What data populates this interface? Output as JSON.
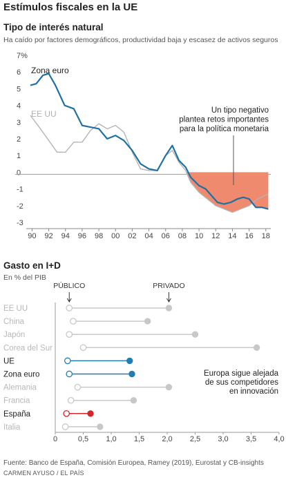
{
  "title": "Estímulos fiscales en la UE",
  "footer": {
    "source": "Fuente: Banco de España, Comisión Europea, Ramey (2019), Eurostat y CB-insights",
    "credit": "CARMEN AYUSO / EL PAÍS"
  },
  "colors": {
    "zona_euro": "#1f6fa3",
    "eeuu": "#b4b4b4",
    "negative_fill": "#ef8a6f",
    "ue_dot": "#1f7fb3",
    "espana_dot": "#d4252c",
    "grey_dot": "#c8c8c8"
  },
  "chart_data": [
    {
      "type": "line",
      "title": "Tipo de interés natural",
      "subtitle": "Ha caído por factores demográficos, productividad baja y escasez de activos seguros",
      "y_unit": "%",
      "ylim": [
        -3,
        7
      ],
      "y_ticks": [
        -3,
        -2,
        -1,
        0,
        1,
        2,
        3,
        4,
        5,
        6,
        7
      ],
      "y_tick_labels": [
        "-3",
        "-2",
        "-1",
        "0",
        "1",
        "2",
        "3",
        "4",
        "5",
        "6",
        "7%"
      ],
      "x_ticks": [
        1990,
        1992,
        1994,
        1996,
        1998,
        2000,
        2002,
        2004,
        2006,
        2008,
        2010,
        2012,
        2014,
        2016,
        2018
      ],
      "x_tick_labels": [
        "90",
        "92",
        "94",
        "96",
        "98",
        "00",
        "02",
        "04",
        "06",
        "08",
        "10",
        "12",
        "14",
        "16",
        "18"
      ],
      "xlim": [
        1989.8,
        2018.6
      ],
      "annotation": "Un tipo negativo plantea retos importantes para la política monetaria",
      "series": [
        {
          "name": "Zona euro",
          "x": [
            1989.8,
            1990.5,
            1991.3,
            1992,
            1992.8,
            1993.9,
            1995,
            1996,
            1997,
            1998,
            1999,
            2000,
            2001,
            2002,
            2003,
            2004,
            2005,
            2006,
            2006.8,
            2007.6,
            2008.4,
            2009,
            2010,
            2010.8,
            2011.5,
            2012.2,
            2013,
            2013.8,
            2014.6,
            2015.3,
            2016,
            2016.8,
            2017.5,
            2018.3
          ],
          "y": [
            5.2,
            5.3,
            5.8,
            5.9,
            5.2,
            4,
            3.8,
            2.8,
            2.7,
            2.6,
            2,
            2.2,
            1.9,
            1.3,
            0.5,
            0.2,
            0.1,
            1,
            1.6,
            0.7,
            0.3,
            -0.3,
            -0.8,
            -1,
            -1.4,
            -1.8,
            -1.9,
            -1.8,
            -1.6,
            -1.5,
            -1.6,
            -2.1,
            -2.1,
            -2.2
          ]
        },
        {
          "name": "EE UU",
          "x": [
            1989.8,
            1991,
            1992,
            1993,
            1994,
            1995,
            1996,
            1997,
            1998,
            1999,
            2000,
            2001,
            2002,
            2003,
            2004,
            2005,
            2006,
            2006.8,
            2007.6,
            2008.4,
            2009,
            2010,
            2011,
            2012,
            2013,
            2014,
            2015,
            2016,
            2017,
            2018.3
          ],
          "y": [
            3.4,
            2.6,
            1.9,
            1.2,
            1.2,
            1.8,
            1.8,
            2.5,
            2.9,
            2.6,
            2.8,
            2.4,
            1.2,
            0.2,
            0.1,
            0.1,
            1,
            1.3,
            0.6,
            0.1,
            -0.6,
            -1.2,
            -1.6,
            -2,
            -2.2,
            -2.4,
            -2.2,
            -2,
            -1.6,
            -1.3
          ]
        }
      ]
    },
    {
      "type": "dot_range",
      "title": "Gasto en I+D",
      "subtitle": "En % del PIB",
      "marker_labels": [
        "PÚBLICO",
        "PRIVADO"
      ],
      "xlim": [
        0,
        4
      ],
      "x_ticks": [
        0,
        0.5,
        1,
        1.5,
        2,
        2.5,
        3,
        3.5,
        4
      ],
      "x_tick_labels": [
        "0",
        "0,5",
        "1,0",
        "1,5",
        "2,0",
        "2,5",
        "3,0",
        "3,5",
        "4,0"
      ],
      "annotation": "Europa sigue alejada de sus competidores en innovación",
      "categories": [
        "EE UU",
        "China",
        "Japón",
        "Corea del Sur",
        "UE",
        "Zona euro",
        "Alemania",
        "Francia",
        "España",
        "Italia"
      ],
      "public": [
        0.25,
        0.32,
        0.25,
        0.5,
        0.22,
        0.25,
        0.4,
        0.28,
        0.2,
        0.18
      ],
      "private": [
        2.03,
        1.65,
        2.5,
        3.6,
        1.33,
        1.37,
        2.03,
        1.4,
        0.63,
        0.8
      ],
      "highlight": [
        "none",
        "none",
        "none",
        "none",
        "blue",
        "blue",
        "none",
        "none",
        "red",
        "none"
      ]
    }
  ]
}
